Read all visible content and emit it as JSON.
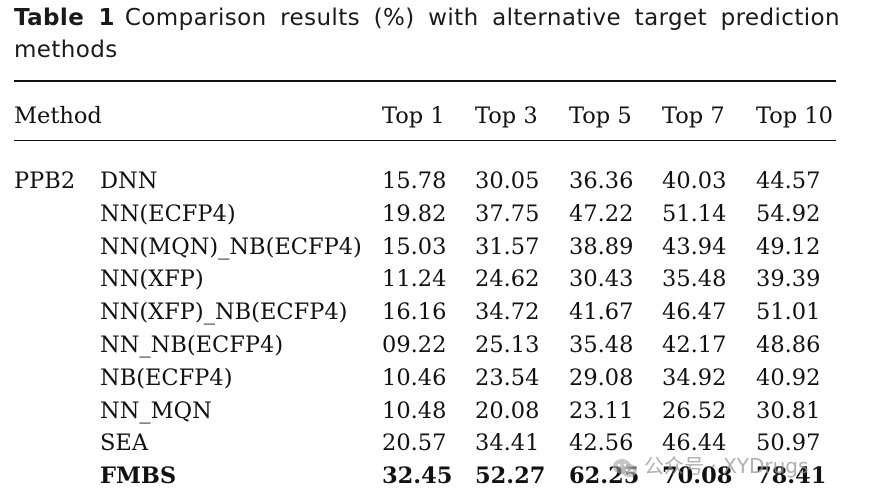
{
  "caption": {
    "label": "Table 1",
    "text": "Comparison results (%) with alternative target prediction methods"
  },
  "table": {
    "headers": [
      "Method",
      "Top 1",
      "Top 3",
      "Top 5",
      "Top 7",
      "Top 10"
    ],
    "group": "PPB2",
    "rows": [
      {
        "method": "DNN",
        "values": [
          "15.78",
          "30.05",
          "36.36",
          "40.03",
          "44.57"
        ]
      },
      {
        "method": "NN(ECFP4)",
        "values": [
          "19.82",
          "37.75",
          "47.22",
          "51.14",
          "54.92"
        ]
      },
      {
        "method": "NN(MQN)_NB(ECFP4)",
        "values": [
          "15.03",
          "31.57",
          "38.89",
          "43.94",
          "49.12"
        ]
      },
      {
        "method": "NN(XFP)",
        "values": [
          "11.24",
          "24.62",
          "30.43",
          "35.48",
          "39.39"
        ]
      },
      {
        "method": "NN(XFP)_NB(ECFP4)",
        "values": [
          "16.16",
          "34.72",
          "41.67",
          "46.47",
          "51.01"
        ]
      },
      {
        "method": "NN_NB(ECFP4)",
        "values": [
          "09.22",
          "25.13",
          "35.48",
          "42.17",
          "48.86"
        ]
      },
      {
        "method": "NB(ECFP4)",
        "values": [
          "10.46",
          "23.54",
          "29.08",
          "34.92",
          "40.92"
        ]
      },
      {
        "method": "NN_MQN",
        "values": [
          "10.48",
          "20.08",
          "23.11",
          "26.52",
          "30.81"
        ]
      },
      {
        "method": "SEA",
        "values": [
          "20.57",
          "34.41",
          "42.56",
          "46.44",
          "50.97"
        ]
      },
      {
        "method": "FMBS",
        "values": [
          "32.45",
          "52.27",
          "62.25",
          "70.08",
          "78.41"
        ]
      }
    ]
  },
  "watermark": {
    "text": "公众号 · XYDrugs",
    "icon": "wechat-icon"
  }
}
